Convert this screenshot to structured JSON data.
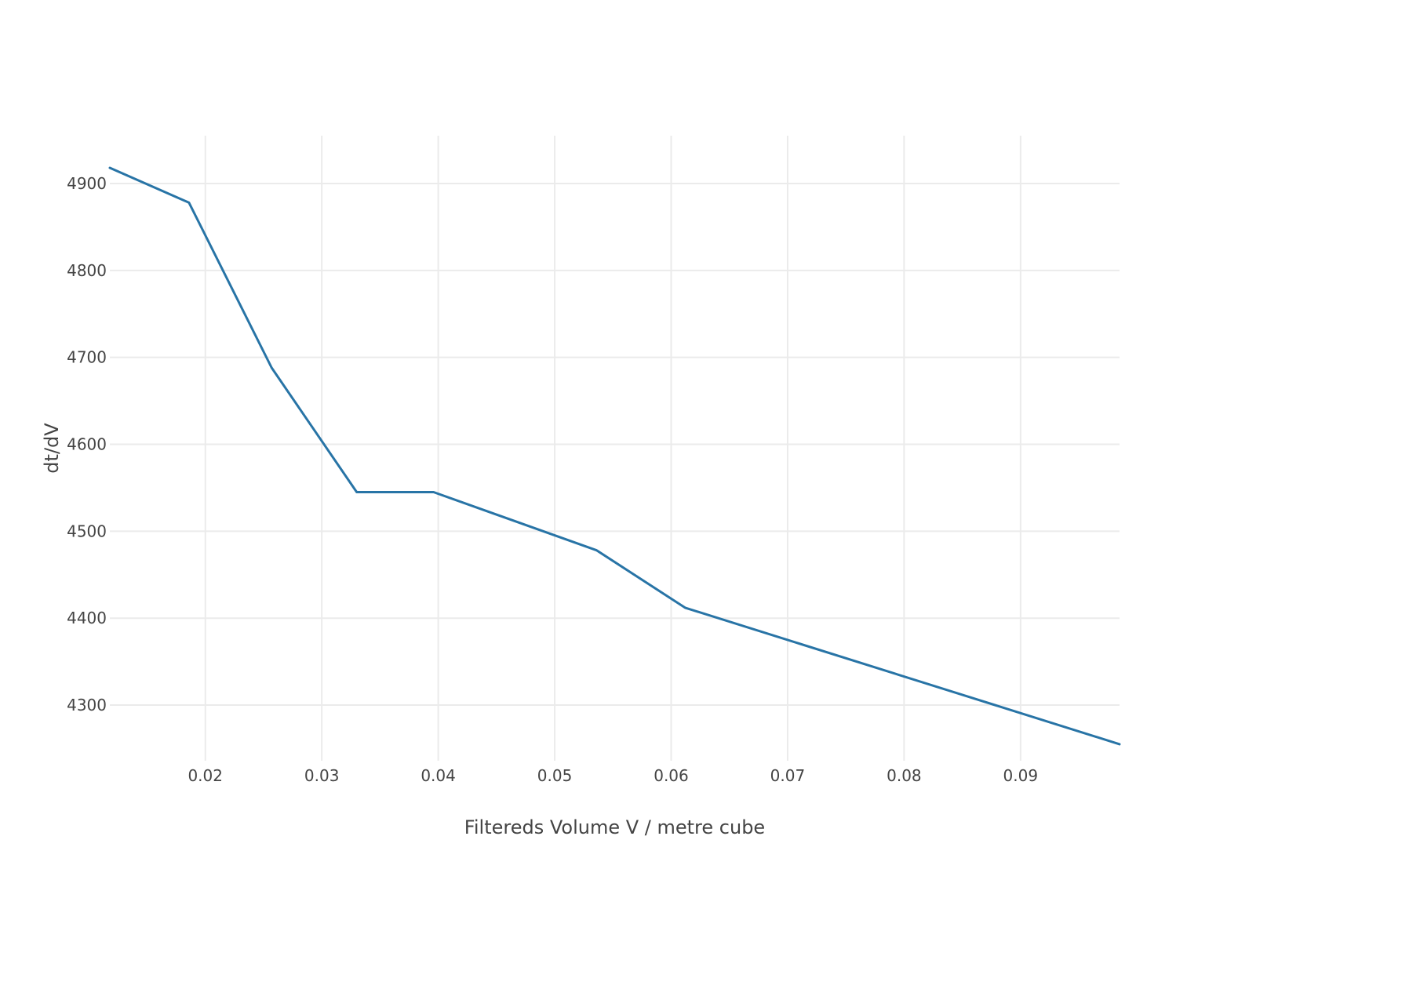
{
  "chart_data": {
    "type": "line",
    "title": "",
    "xlabel": "Filtereds Volume V / metre cube",
    "ylabel": "dt/dV",
    "xlim": [
      0.0118,
      0.0985
    ],
    "ylim": [
      4236,
      4955
    ],
    "x_ticks": [
      0.02,
      0.03,
      0.04,
      0.05,
      0.06,
      0.07,
      0.08,
      0.09
    ],
    "x_tick_labels": [
      "0.02",
      "0.03",
      "0.04",
      "0.05",
      "0.06",
      "0.07",
      "0.08",
      "0.09"
    ],
    "y_ticks": [
      4300,
      4400,
      4500,
      4600,
      4700,
      4800,
      4900
    ],
    "y_tick_labels": [
      "4300",
      "4400",
      "4500",
      "4600",
      "4700",
      "4800",
      "4900"
    ],
    "grid": true,
    "series": [
      {
        "color": "#2874a6",
        "x": [
          0.0118,
          0.0186,
          0.0257,
          0.033,
          0.0396,
          0.0536,
          0.0612,
          0.0985
        ],
        "y": [
          4918,
          4878,
          4688,
          4545,
          4545,
          4478,
          4412,
          4255
        ]
      }
    ]
  }
}
